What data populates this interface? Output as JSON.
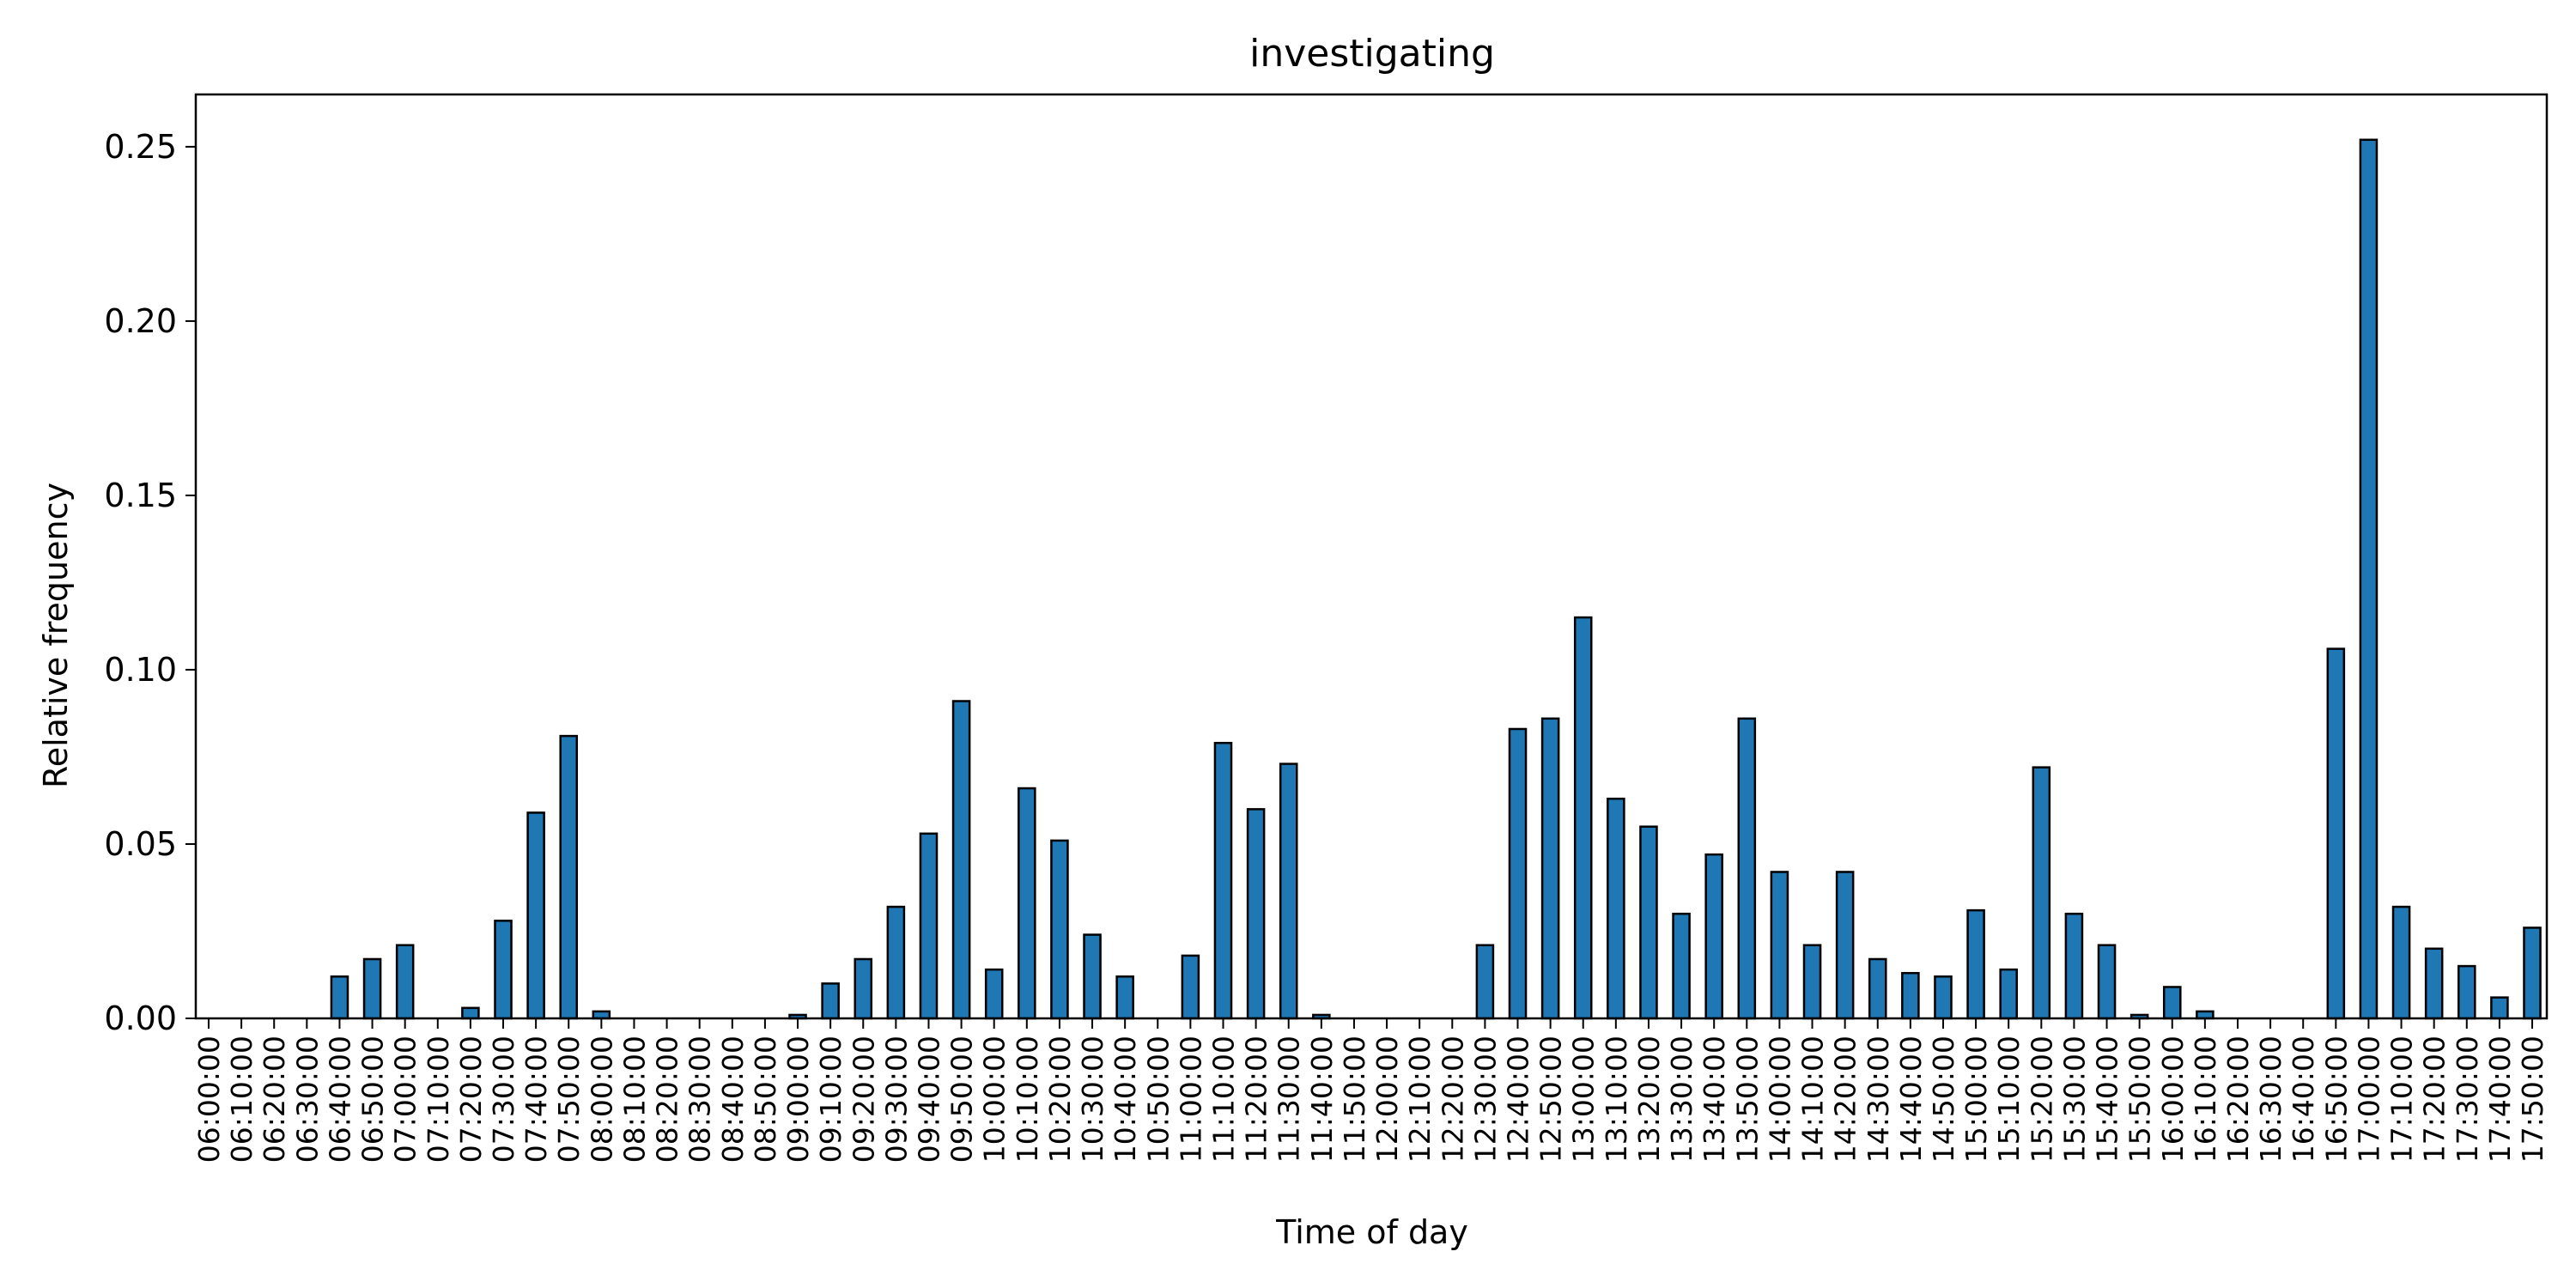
{
  "colors": {
    "bar_fill": "#1f77b4",
    "bar_edge": "#000000",
    "axis": "#000000",
    "background": "#ffffff"
  },
  "chart_data": {
    "type": "bar",
    "title": "investigating",
    "xlabel": "Time of day",
    "ylabel": "Relative frequency",
    "ylim": [
      0,
      0.265
    ],
    "yticks": [
      0.0,
      0.05,
      0.1,
      0.15,
      0.2,
      0.25
    ],
    "ytick_labels": [
      "0.00",
      "0.05",
      "0.10",
      "0.15",
      "0.20",
      "0.25"
    ],
    "grid": false,
    "legend": null,
    "categories": [
      "06:00:00",
      "06:10:00",
      "06:20:00",
      "06:30:00",
      "06:40:00",
      "06:50:00",
      "07:00:00",
      "07:10:00",
      "07:20:00",
      "07:30:00",
      "07:40:00",
      "07:50:00",
      "08:00:00",
      "08:10:00",
      "08:20:00",
      "08:30:00",
      "08:40:00",
      "08:50:00",
      "09:00:00",
      "09:10:00",
      "09:20:00",
      "09:30:00",
      "09:40:00",
      "09:50:00",
      "10:00:00",
      "10:10:00",
      "10:20:00",
      "10:30:00",
      "10:40:00",
      "10:50:00",
      "11:00:00",
      "11:10:00",
      "11:20:00",
      "11:30:00",
      "11:40:00",
      "11:50:00",
      "12:00:00",
      "12:10:00",
      "12:20:00",
      "12:30:00",
      "12:40:00",
      "12:50:00",
      "13:00:00",
      "13:10:00",
      "13:20:00",
      "13:30:00",
      "13:40:00",
      "13:50:00",
      "14:00:00",
      "14:10:00",
      "14:20:00",
      "14:30:00",
      "14:40:00",
      "14:50:00",
      "15:00:00",
      "15:10:00",
      "15:20:00",
      "15:30:00",
      "15:40:00",
      "15:50:00",
      "16:00:00",
      "16:10:00",
      "16:20:00",
      "16:30:00",
      "16:40:00",
      "16:50:00",
      "17:00:00",
      "17:10:00",
      "17:20:00",
      "17:30:00",
      "17:40:00",
      "17:50:00"
    ],
    "values": [
      0.0,
      0.0,
      0.0,
      0.0,
      0.012,
      0.017,
      0.021,
      0.0,
      0.003,
      0.028,
      0.059,
      0.081,
      0.002,
      0.0,
      0.0,
      0.0,
      0.0,
      0.0,
      0.001,
      0.01,
      0.017,
      0.032,
      0.053,
      0.091,
      0.014,
      0.066,
      0.051,
      0.024,
      0.012,
      0.0,
      0.018,
      0.079,
      0.06,
      0.073,
      0.001,
      0.0,
      0.0,
      0.0,
      0.0,
      0.021,
      0.083,
      0.086,
      0.115,
      0.063,
      0.055,
      0.03,
      0.047,
      0.086,
      0.042,
      0.021,
      0.042,
      0.017,
      0.013,
      0.012,
      0.031,
      0.014,
      0.072,
      0.03,
      0.021,
      0.001,
      0.009,
      0.002,
      0.0,
      0.0,
      0.0,
      0.106,
      0.252,
      0.032,
      0.02,
      0.015,
      0.006,
      0.026
    ]
  }
}
